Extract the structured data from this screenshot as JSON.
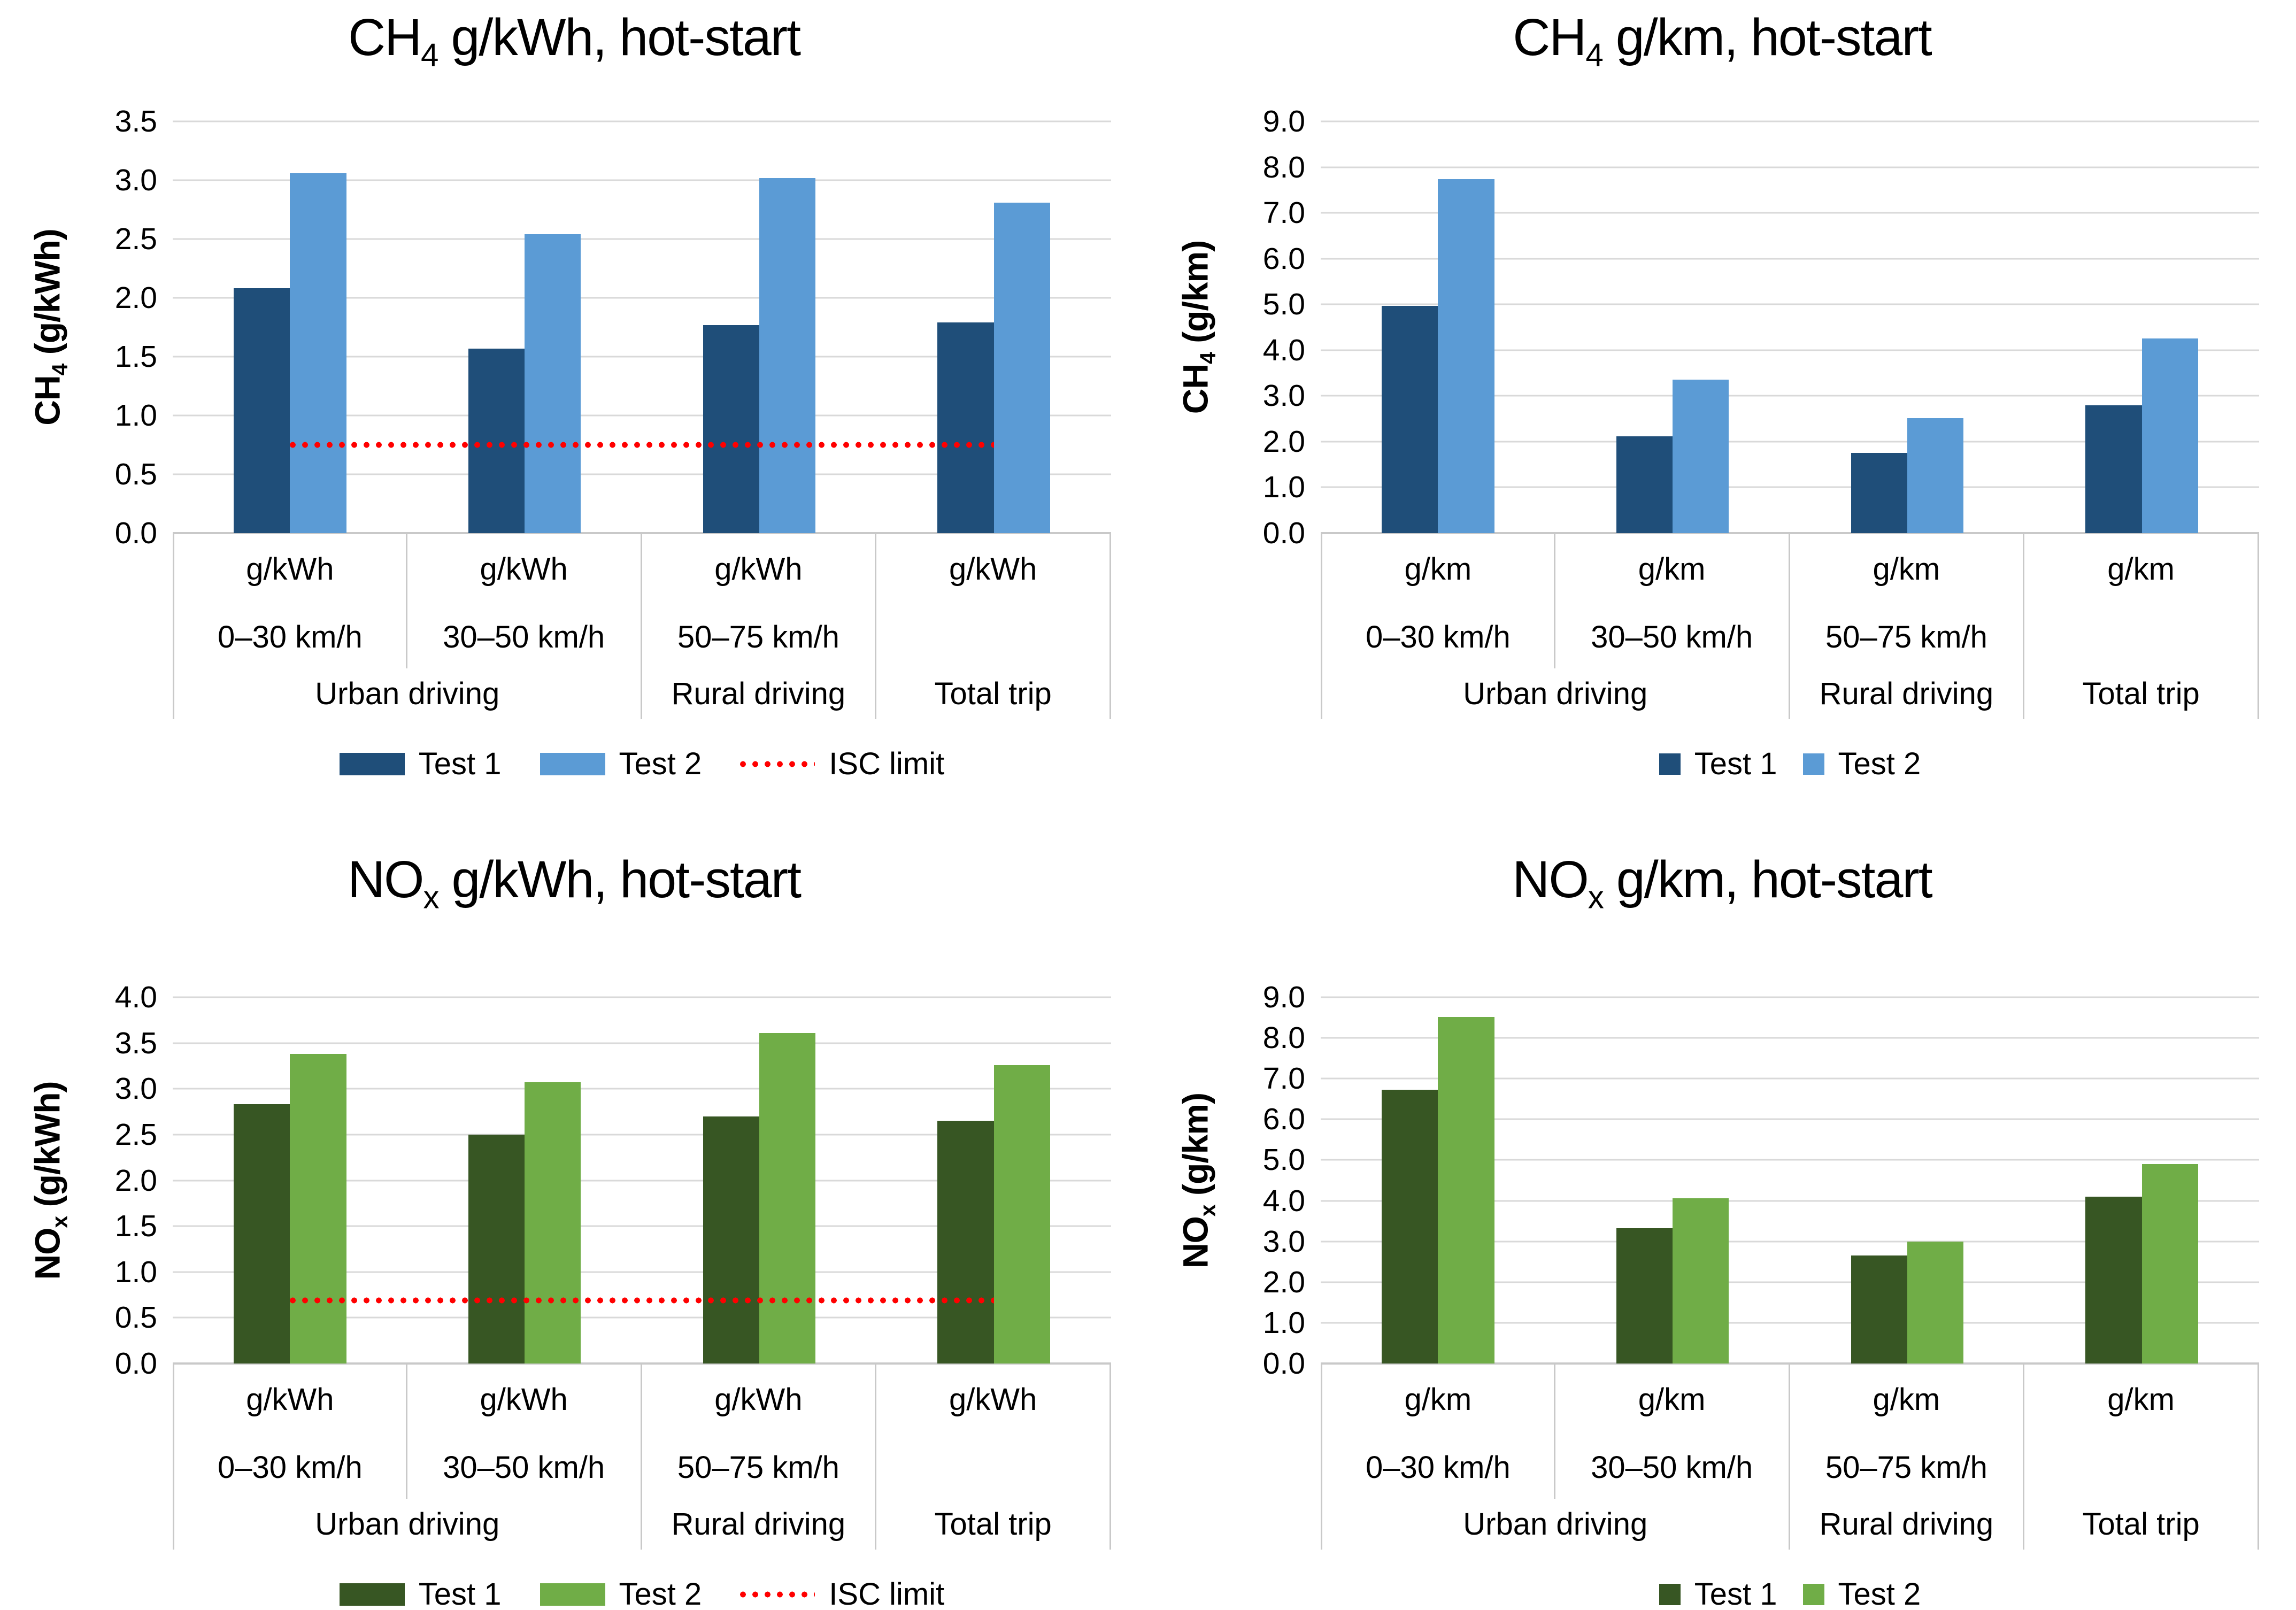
{
  "figure": {
    "background": "#FFFFFF"
  },
  "colors": {
    "test1_blue": "#1F4E79",
    "test2_blue": "#5B9BD5",
    "test1_green": "#375623",
    "test2_green": "#70AD47",
    "isc_red": "#FF0000",
    "gridline_gray": "#D9D9D9",
    "axis_gray": "#C9C9C9",
    "text_black": "#000000"
  },
  "chart_data": [
    {
      "id": "ch4-gkwh",
      "type": "bar",
      "title": {
        "pre": "CH",
        "sub": "4",
        "post": " g/kWh, hot-start",
        "text": "CH4 g/kWh, hot-start"
      },
      "ylabel": {
        "pre": "CH",
        "sub": "4",
        "post": " (g/kWh)",
        "text": "CH4 (g/kWh)"
      },
      "xlabel": "",
      "ylim": [
        0,
        3.5
      ],
      "yticks": [
        "3.5",
        "3.0",
        "2.5",
        "2.0",
        "1.5",
        "1.0",
        "0.5",
        "0.0"
      ],
      "grid": true,
      "legend_position": "bottom",
      "legend_style": "bar",
      "categories": [
        {
          "unit": "g/kWh",
          "speed": "0–30 km/h"
        },
        {
          "unit": "g/kWh",
          "speed": "30–50 km/h"
        },
        {
          "unit": "g/kWh",
          "speed": "50–75 km/h"
        },
        {
          "unit": "g/kWh",
          "speed": ""
        }
      ],
      "groups": [
        {
          "label": "Urban driving",
          "span": 2
        },
        {
          "label": "Rural driving",
          "span": 1
        },
        {
          "label": "Total trip",
          "span": 1
        }
      ],
      "series": [
        {
          "name": "Test 1",
          "color": "#1F4E79",
          "values": [
            2.08,
            1.57,
            1.77,
            1.79
          ]
        },
        {
          "name": "Test 2",
          "color": "#5B9BD5",
          "values": [
            3.06,
            2.54,
            3.02,
            2.81
          ]
        }
      ],
      "isc_limit": {
        "label": "ISC limit",
        "value": 0.75,
        "color": "#FF0000"
      }
    },
    {
      "id": "ch4-gkm",
      "type": "bar",
      "title": {
        "pre": "CH",
        "sub": "4",
        "post": " g/km, hot-start",
        "text": "CH4 g/km, hot-start"
      },
      "ylabel": {
        "pre": "CH",
        "sub": "4",
        "post": " (g/km)",
        "text": "CH4 (g/km)"
      },
      "xlabel": "",
      "ylim": [
        0,
        9
      ],
      "yticks": [
        "9.0",
        "8.0",
        "7.0",
        "6.0",
        "5.0",
        "4.0",
        "3.0",
        "2.0",
        "1.0",
        "0.0"
      ],
      "grid": true,
      "legend_position": "bottom",
      "legend_style": "square",
      "categories": [
        {
          "unit": "g/km",
          "speed": "0–30 km/h"
        },
        {
          "unit": "g/km",
          "speed": "30–50 km/h"
        },
        {
          "unit": "g/km",
          "speed": "50–75 km/h"
        },
        {
          "unit": "g/km",
          "speed": ""
        }
      ],
      "groups": [
        {
          "label": "Urban driving",
          "span": 2
        },
        {
          "label": "Rural driving",
          "span": 1
        },
        {
          "label": "Total trip",
          "span": 1
        }
      ],
      "series": [
        {
          "name": "Test 1",
          "color": "#1F4E79",
          "values": [
            4.97,
            2.11,
            1.75,
            2.79
          ]
        },
        {
          "name": "Test 2",
          "color": "#5B9BD5",
          "values": [
            7.74,
            3.35,
            2.51,
            4.26
          ]
        }
      ],
      "isc_limit": null
    },
    {
      "id": "nox-gkwh",
      "type": "bar",
      "title": {
        "pre": "NO",
        "sub": "x",
        "post": " g/kWh, hot-start",
        "text": "NOx g/kWh, hot-start"
      },
      "ylabel": {
        "pre": "NO",
        "sub": "x",
        "post": " (g/kWh)",
        "text": "NOx (g/kWh)"
      },
      "xlabel": "",
      "ylim": [
        0,
        4
      ],
      "yticks": [
        "4.0",
        "3.5",
        "3.0",
        "2.5",
        "2.0",
        "1.5",
        "1.0",
        "0.5",
        "0.0"
      ],
      "grid": true,
      "legend_position": "bottom",
      "legend_style": "bar",
      "categories": [
        {
          "unit": "g/kWh",
          "speed": "0–30 km/h"
        },
        {
          "unit": "g/kWh",
          "speed": "30–50 km/h"
        },
        {
          "unit": "g/kWh",
          "speed": "50–75 km/h"
        },
        {
          "unit": "g/kWh",
          "speed": ""
        }
      ],
      "groups": [
        {
          "label": "Urban driving",
          "span": 2
        },
        {
          "label": "Rural driving",
          "span": 1
        },
        {
          "label": "Total trip",
          "span": 1
        }
      ],
      "series": [
        {
          "name": "Test 1",
          "color": "#375623",
          "values": [
            2.83,
            2.5,
            2.7,
            2.65
          ]
        },
        {
          "name": "Test 2",
          "color": "#70AD47",
          "values": [
            3.38,
            3.07,
            3.61,
            3.26
          ]
        }
      ],
      "isc_limit": {
        "label": "ISC limit",
        "value": 0.69,
        "color": "#FF0000"
      }
    },
    {
      "id": "nox-gkm",
      "type": "bar",
      "title": {
        "pre": "NO",
        "sub": "x",
        "post": " g/km, hot-start",
        "text": "NOx g/km, hot-start"
      },
      "ylabel": {
        "pre": "NO",
        "sub": "x",
        "post": " (g/km)",
        "text": "NOx (g/km)"
      },
      "xlabel": "",
      "ylim": [
        0,
        9
      ],
      "yticks": [
        "9.0",
        "8.0",
        "7.0",
        "6.0",
        "5.0",
        "4.0",
        "3.0",
        "2.0",
        "1.0",
        "0.0"
      ],
      "grid": true,
      "legend_position": "bottom",
      "legend_style": "square",
      "categories": [
        {
          "unit": "g/km",
          "speed": "0–30 km/h"
        },
        {
          "unit": "g/km",
          "speed": "30–50 km/h"
        },
        {
          "unit": "g/km",
          "speed": "50–75 km/h"
        },
        {
          "unit": "g/km",
          "speed": ""
        }
      ],
      "groups": [
        {
          "label": "Urban driving",
          "span": 2
        },
        {
          "label": "Rural driving",
          "span": 1
        },
        {
          "label": "Total trip",
          "span": 1
        }
      ],
      "series": [
        {
          "name": "Test 1",
          "color": "#375623",
          "values": [
            6.73,
            3.33,
            2.65,
            4.1
          ]
        },
        {
          "name": "Test 2",
          "color": "#70AD47",
          "values": [
            8.52,
            4.06,
            3.0,
            4.9
          ]
        }
      ],
      "isc_limit": null
    }
  ]
}
